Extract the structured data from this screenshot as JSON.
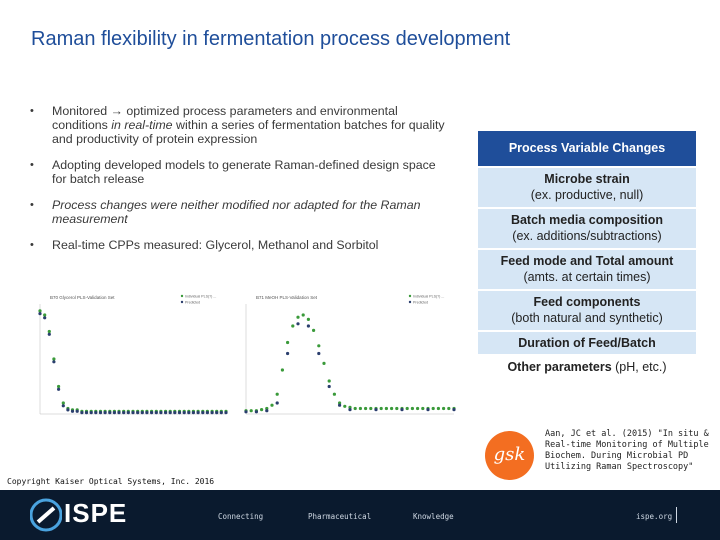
{
  "title": "Raman flexibility in fermentation process development",
  "bullets": [
    {
      "pre": "Monitored → optimized process parameters and environmental conditions ",
      "em": "in real-time",
      "post": " within a series of fermentation batches for quality and productivity of protein expression"
    },
    {
      "pre": "Adopting developed models to generate Raman-defined design space for batch release",
      "em": "",
      "post": ""
    },
    {
      "pre": "",
      "em": "Process changes were neither modified nor adapted for the Raman measurement",
      "post": ""
    },
    {
      "pre": "Real-time CPPs measured: Glycerol, Methanol and Sorbitol",
      "em": "",
      "post": ""
    }
  ],
  "process_variables": {
    "header": "Process Variable Changes",
    "rows": [
      {
        "main": "Microbe strain",
        "sub": "(ex. productive, null)"
      },
      {
        "main": "Batch media composition",
        "sub": "(ex. additions/subtractions)"
      },
      {
        "main": "Feed mode and Total amount",
        "sub": "(amts. at certain times)"
      },
      {
        "main": "Feed components",
        "sub": "(both natural and synthetic)"
      },
      {
        "main": "Duration of Feed/Batch",
        "sub": ""
      },
      {
        "main": "Other parameters",
        "sub": "(pH, etc.)"
      }
    ]
  },
  "chart_data": [
    {
      "type": "scatter",
      "title": "B70 Glycerol PLS-Validation Set",
      "legend": [
        "Individual PLS(?) ...",
        "Predicted"
      ],
      "series": [
        {
          "name": "Individual PLS(?) ...",
          "color": "#3a9a3a",
          "points": [
            [
              0,
              75
            ],
            [
              1,
              72
            ],
            [
              2,
              60
            ],
            [
              3,
              40
            ],
            [
              4,
              20
            ],
            [
              5,
              8
            ],
            [
              6,
              4
            ],
            [
              7,
              3
            ],
            [
              8,
              3
            ],
            [
              9,
              2
            ],
            [
              10,
              2
            ],
            [
              11,
              2
            ],
            [
              12,
              2
            ],
            [
              13,
              2
            ],
            [
              14,
              2
            ],
            [
              15,
              2
            ],
            [
              16,
              2
            ],
            [
              17,
              2
            ],
            [
              18,
              2
            ],
            [
              19,
              2
            ],
            [
              20,
              2
            ],
            [
              21,
              2
            ],
            [
              22,
              2
            ],
            [
              23,
              2
            ],
            [
              24,
              2
            ],
            [
              25,
              2
            ],
            [
              26,
              2
            ],
            [
              27,
              2
            ],
            [
              28,
              2
            ],
            [
              29,
              2
            ],
            [
              30,
              2
            ],
            [
              31,
              2
            ],
            [
              32,
              2
            ],
            [
              33,
              2
            ],
            [
              34,
              2
            ],
            [
              35,
              2
            ],
            [
              36,
              2
            ],
            [
              37,
              2
            ],
            [
              38,
              2
            ],
            [
              39,
              2
            ],
            [
              40,
              2
            ]
          ]
        },
        {
          "name": "Predicted",
          "color": "#2b3f6e",
          "points": [
            [
              0,
              73
            ],
            [
              1,
              70
            ],
            [
              2,
              58
            ],
            [
              3,
              38
            ],
            [
              4,
              18
            ],
            [
              5,
              6
            ],
            [
              6,
              3
            ],
            [
              7,
              2
            ],
            [
              8,
              2
            ],
            [
              9,
              1
            ],
            [
              10,
              1
            ],
            [
              11,
              1
            ],
            [
              12,
              1
            ],
            [
              13,
              1
            ],
            [
              14,
              1
            ],
            [
              15,
              1
            ],
            [
              16,
              1
            ],
            [
              17,
              1
            ],
            [
              18,
              1
            ],
            [
              19,
              1
            ],
            [
              20,
              1
            ],
            [
              21,
              1
            ],
            [
              22,
              1
            ],
            [
              23,
              1
            ],
            [
              24,
              1
            ],
            [
              25,
              1
            ],
            [
              26,
              1
            ],
            [
              27,
              1
            ],
            [
              28,
              1
            ],
            [
              29,
              1
            ],
            [
              30,
              1
            ],
            [
              31,
              1
            ],
            [
              32,
              1
            ],
            [
              33,
              1
            ],
            [
              34,
              1
            ],
            [
              35,
              1
            ],
            [
              36,
              1
            ],
            [
              37,
              1
            ],
            [
              38,
              1
            ],
            [
              39,
              1
            ],
            [
              40,
              1
            ]
          ]
        }
      ],
      "xlim": [
        0,
        40
      ],
      "ylim": [
        0,
        80
      ]
    },
    {
      "type": "scatter",
      "title": "B71 MeOH PLS-Validation Set",
      "legend": [
        "Individual PLS(?) ...",
        "Predicted"
      ],
      "series": [
        {
          "name": "Individual PLS(?) ...",
          "color": "#3a9a3a",
          "points": [
            [
              0,
              3
            ],
            [
              1,
              3
            ],
            [
              2,
              3
            ],
            [
              3,
              4
            ],
            [
              4,
              5
            ],
            [
              5,
              8
            ],
            [
              6,
              18
            ],
            [
              7,
              40
            ],
            [
              8,
              65
            ],
            [
              9,
              80
            ],
            [
              10,
              88
            ],
            [
              11,
              90
            ],
            [
              12,
              86
            ],
            [
              13,
              76
            ],
            [
              14,
              62
            ],
            [
              15,
              46
            ],
            [
              16,
              30
            ],
            [
              17,
              18
            ],
            [
              18,
              10
            ],
            [
              19,
              7
            ],
            [
              20,
              6
            ],
            [
              21,
              5
            ],
            [
              22,
              5
            ],
            [
              23,
              5
            ],
            [
              24,
              5
            ],
            [
              25,
              5
            ],
            [
              26,
              5
            ],
            [
              27,
              5
            ],
            [
              28,
              5
            ],
            [
              29,
              5
            ],
            [
              30,
              5
            ],
            [
              31,
              5
            ],
            [
              32,
              5
            ],
            [
              33,
              5
            ],
            [
              34,
              5
            ],
            [
              35,
              5
            ],
            [
              36,
              5
            ],
            [
              37,
              5
            ],
            [
              38,
              5
            ],
            [
              39,
              5
            ],
            [
              40,
              5
            ]
          ]
        },
        {
          "name": "Predicted",
          "color": "#2b3f6e",
          "points": [
            [
              0,
              2
            ],
            [
              2,
              2
            ],
            [
              4,
              3
            ],
            [
              6,
              10
            ],
            [
              8,
              55
            ],
            [
              10,
              82
            ],
            [
              12,
              80
            ],
            [
              14,
              55
            ],
            [
              16,
              25
            ],
            [
              18,
              8
            ],
            [
              20,
              4
            ],
            [
              25,
              4
            ],
            [
              30,
              4
            ],
            [
              35,
              4
            ],
            [
              40,
              4
            ]
          ]
        }
      ],
      "xlim": [
        0,
        40
      ],
      "ylim": [
        0,
        100
      ]
    }
  ],
  "reference": {
    "logo": "gsk",
    "text": "Aan, JC et al. (2015) \"In situ & Real-time Monitoring of Multiple Biochem. During Microbial PD Utilizing Raman Spectroscopy\""
  },
  "copyright": "Copyright Kaiser Optical Systems, Inc. 2016",
  "footer": {
    "logo": "ISPE",
    "nav": [
      "Connecting",
      "Pharmaceutical",
      "Knowledge"
    ],
    "site": "ispe.org"
  },
  "colors": {
    "title": "#1f4e9a",
    "table_header": "#1f4e9a",
    "table_row": "#d6e6f5",
    "footer_bg": "#0a1a2e",
    "logo_orange": "#f36e21"
  }
}
